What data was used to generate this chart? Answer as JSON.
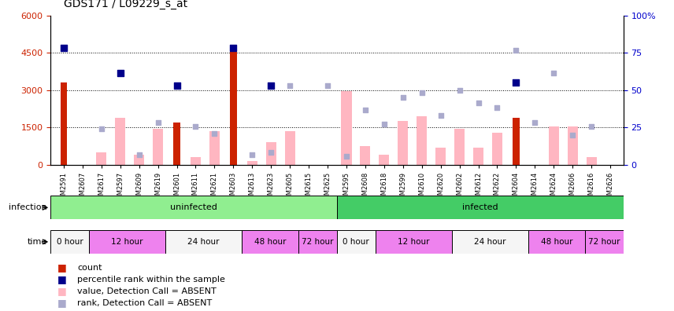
{
  "title": "GDS171 / L09229_s_at",
  "samples": [
    "GSM2591",
    "GSM2607",
    "GSM2617",
    "GSM2597",
    "GSM2609",
    "GSM2619",
    "GSM2601",
    "GSM2611",
    "GSM2621",
    "GSM2603",
    "GSM2613",
    "GSM2623",
    "GSM2605",
    "GSM2615",
    "GSM2625",
    "GSM2595",
    "GSM2608",
    "GSM2618",
    "GSM2599",
    "GSM2610",
    "GSM2620",
    "GSM2602",
    "GSM2612",
    "GSM2622",
    "GSM2604",
    "GSM2614",
    "GSM2624",
    "GSM2606",
    "GSM2616",
    "GSM2626"
  ],
  "red_bars": [
    3300,
    0,
    0,
    0,
    0,
    0,
    1700,
    0,
    0,
    4600,
    0,
    0,
    0,
    0,
    0,
    0,
    0,
    0,
    0,
    0,
    0,
    0,
    0,
    0,
    1900,
    0,
    0,
    0,
    0,
    0
  ],
  "blue_squares_left": [
    4700,
    0,
    0,
    3700,
    0,
    0,
    3200,
    0,
    0,
    4700,
    0,
    3200,
    0,
    0,
    0,
    0,
    0,
    0,
    0,
    0,
    0,
    0,
    0,
    0,
    3300,
    0,
    0,
    0,
    0,
    0
  ],
  "pink_bars": [
    0,
    0,
    500,
    1900,
    400,
    1450,
    0,
    300,
    1350,
    0,
    150,
    900,
    1350,
    0,
    0,
    2950,
    750,
    400,
    1750,
    1950,
    700,
    1450,
    700,
    1300,
    0,
    0,
    1550,
    1550,
    300,
    0
  ],
  "light_blue_squares_left": [
    0,
    0,
    1450,
    0,
    400,
    1700,
    0,
    1550,
    1250,
    0,
    400,
    500,
    3200,
    0,
    3200,
    350,
    2200,
    1650,
    2700,
    2900,
    2000,
    3000,
    2500,
    2300,
    4600,
    1700,
    3700,
    1200,
    1550,
    0
  ],
  "ylim_left": [
    0,
    6000
  ],
  "ylim_right": [
    0,
    100
  ],
  "left_yticks": [
    0,
    1500,
    3000,
    4500,
    6000
  ],
  "right_yticks": [
    0,
    25,
    50,
    75,
    100
  ],
  "red_color": "#cc2200",
  "blue_color": "#00008B",
  "pink_color": "#FFB6C1",
  "light_blue_color": "#AAAACC",
  "infection_uninfected_color": "#90EE90",
  "infection_infected_color": "#44CC66",
  "time_light_color": "#f5f5f5",
  "time_magenta_color": "#EE82EE"
}
